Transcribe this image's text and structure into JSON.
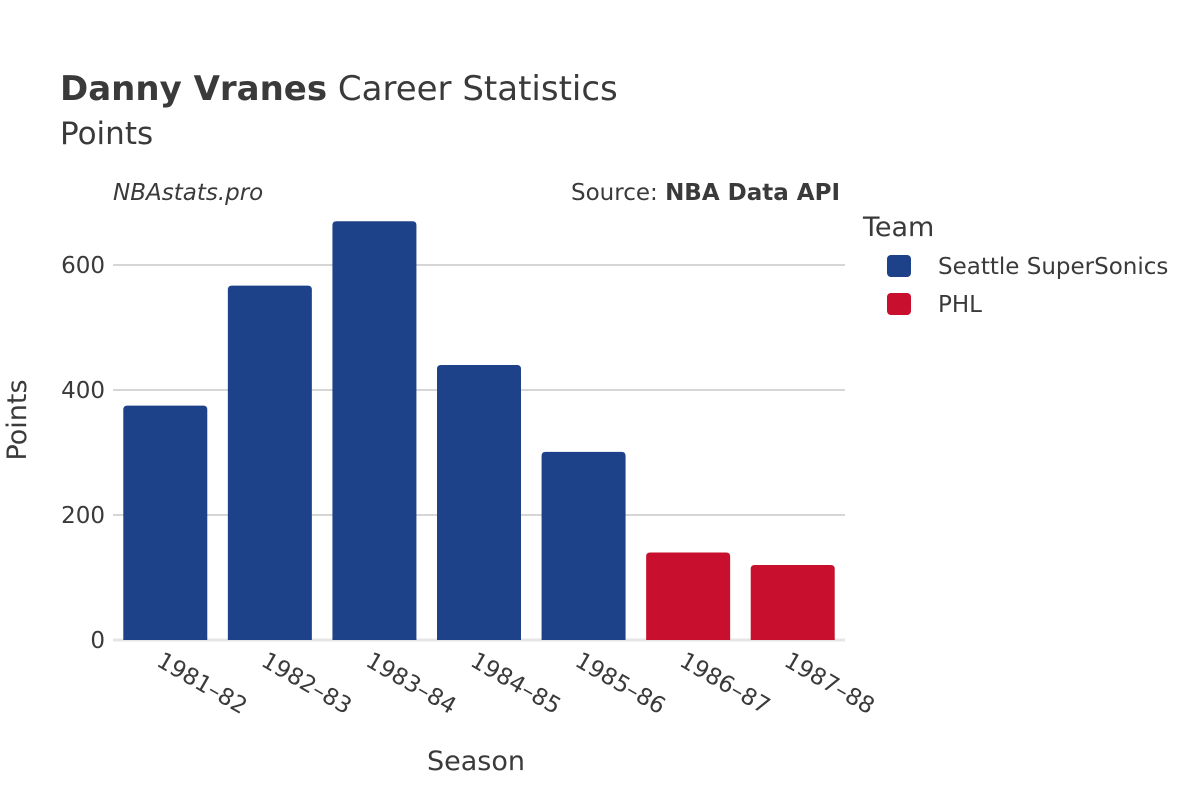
{
  "header": {
    "player_name": "Danny Vranes",
    "title_rest": " Career Statistics",
    "subtitle": "Points",
    "watermark": "NBAstats.pro",
    "source_prefix": "Source: ",
    "source_name": "NBA Data API"
  },
  "legend": {
    "title": "Team",
    "position": "right",
    "items": [
      {
        "label": "Seattle SuperSonics",
        "color": "#1d4289"
      },
      {
        "label": "PHL",
        "color": "#c8102e"
      }
    ]
  },
  "chart_data": {
    "type": "bar",
    "title": "Danny Vranes Career Statistics",
    "subtitle": "Points",
    "xlabel": "Season",
    "ylabel": "Points",
    "categories": [
      "1981–82",
      "1982–83",
      "1983–84",
      "1984–85",
      "1985–86",
      "1986–87",
      "1987–88"
    ],
    "values": [
      375,
      567,
      670,
      440,
      301,
      140,
      120
    ],
    "teams": [
      "Seattle SuperSonics",
      "Seattle SuperSonics",
      "Seattle SuperSonics",
      "Seattle SuperSonics",
      "Seattle SuperSonics",
      "PHL",
      "PHL"
    ],
    "colors": {
      "Seattle SuperSonics": "#1d4289",
      "PHL": "#c8102e"
    },
    "ylim": [
      0,
      700
    ],
    "yticks": [
      0,
      200,
      400,
      600
    ],
    "grid": true
  }
}
